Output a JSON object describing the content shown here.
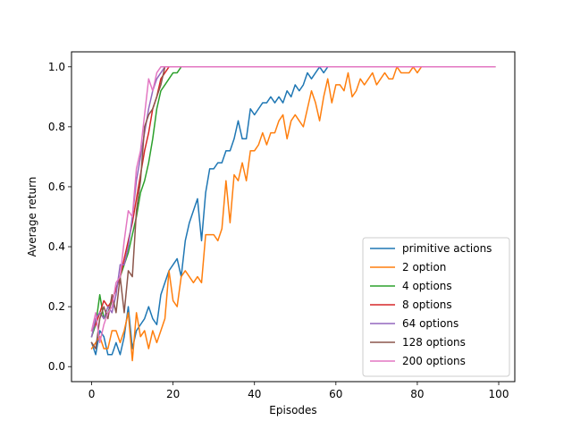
{
  "chart_data": {
    "type": "line",
    "xlabel": "Episodes",
    "ylabel": "Average return",
    "xlim": [
      -4.95,
      103.95
    ],
    "ylim": [
      -0.05,
      1.05
    ],
    "xticks": [
      0,
      20,
      40,
      60,
      80,
      100
    ],
    "yticks": [
      0.0,
      0.2,
      0.4,
      0.6,
      0.8,
      1.0
    ],
    "xtick_labels": [
      "0",
      "20",
      "40",
      "60",
      "80",
      "100"
    ],
    "ytick_labels": [
      "0.0",
      "0.2",
      "0.4",
      "0.6",
      "0.8",
      "1.0"
    ],
    "grid": false,
    "legend_position": "lower right",
    "series": [
      {
        "name": "primitive actions",
        "color": "#1f77b4",
        "y": [
          0.08,
          0.04,
          0.12,
          0.1,
          0.04,
          0.04,
          0.08,
          0.04,
          0.1,
          0.2,
          0.06,
          0.12,
          0.14,
          0.16,
          0.2,
          0.16,
          0.14,
          0.24,
          0.28,
          0.32,
          0.34,
          0.36,
          0.3,
          0.42,
          0.48,
          0.52,
          0.56,
          0.42,
          0.58,
          0.66,
          0.66,
          0.68,
          0.68,
          0.72,
          0.72,
          0.76,
          0.82,
          0.76,
          0.76,
          0.86,
          0.84,
          0.86,
          0.88,
          0.88,
          0.9,
          0.88,
          0.9,
          0.88,
          0.92,
          0.9,
          0.94,
          0.92,
          0.94,
          0.98,
          0.96,
          0.98,
          1.0,
          0.98,
          1.0,
          1.0,
          1.0,
          1.0,
          1.0,
          1.0,
          1.0,
          1.0,
          1.0,
          1.0,
          1.0,
          1.0,
          1.0,
          1.0,
          1.0,
          1.0,
          1.0,
          1.0,
          1.0,
          1.0,
          1.0,
          1.0,
          1.0,
          1.0,
          1.0,
          1.0,
          1.0,
          1.0,
          1.0,
          1.0,
          1.0,
          1.0,
          1.0,
          1.0,
          1.0,
          1.0,
          1.0,
          1.0,
          1.0,
          1.0,
          1.0,
          1.0
        ]
      },
      {
        "name": "2 option",
        "color": "#ff7f0e",
        "y": [
          0.06,
          0.08,
          0.1,
          0.06,
          0.06,
          0.12,
          0.12,
          0.08,
          0.12,
          0.18,
          0.02,
          0.18,
          0.1,
          0.12,
          0.06,
          0.12,
          0.08,
          0.12,
          0.16,
          0.32,
          0.22,
          0.2,
          0.3,
          0.32,
          0.3,
          0.28,
          0.3,
          0.28,
          0.44,
          0.44,
          0.44,
          0.42,
          0.46,
          0.62,
          0.48,
          0.64,
          0.62,
          0.68,
          0.62,
          0.72,
          0.72,
          0.74,
          0.78,
          0.74,
          0.78,
          0.78,
          0.82,
          0.84,
          0.76,
          0.82,
          0.84,
          0.82,
          0.8,
          0.86,
          0.92,
          0.88,
          0.82,
          0.9,
          0.96,
          0.88,
          0.94,
          0.94,
          0.92,
          0.98,
          0.9,
          0.92,
          0.96,
          0.94,
          0.96,
          0.98,
          0.94,
          0.96,
          0.98,
          0.96,
          0.96,
          1.0,
          0.98,
          0.98,
          0.98,
          1.0,
          0.98,
          1.0,
          1.0,
          1.0,
          1.0,
          1.0,
          1.0,
          1.0,
          1.0,
          1.0,
          1.0,
          1.0,
          1.0,
          1.0,
          1.0,
          1.0,
          1.0,
          1.0,
          1.0,
          1.0
        ]
      },
      {
        "name": "4 options",
        "color": "#2ca02c",
        "y": [
          0.1,
          0.14,
          0.24,
          0.16,
          0.18,
          0.22,
          0.26,
          0.3,
          0.34,
          0.38,
          0.44,
          0.5,
          0.58,
          0.62,
          0.68,
          0.76,
          0.86,
          0.92,
          0.94,
          0.96,
          0.98,
          0.98,
          1.0,
          1.0,
          1.0,
          1.0,
          1.0,
          1.0,
          1.0,
          1.0,
          1.0,
          1.0,
          1.0,
          1.0,
          1.0,
          1.0,
          1.0,
          1.0,
          1.0,
          1.0,
          1.0,
          1.0,
          1.0,
          1.0,
          1.0,
          1.0,
          1.0,
          1.0,
          1.0,
          1.0,
          1.0,
          1.0,
          1.0,
          1.0,
          1.0,
          1.0,
          1.0,
          1.0,
          1.0,
          1.0,
          1.0,
          1.0,
          1.0,
          1.0,
          1.0,
          1.0,
          1.0,
          1.0,
          1.0,
          1.0,
          1.0,
          1.0,
          1.0,
          1.0,
          1.0,
          1.0,
          1.0,
          1.0,
          1.0,
          1.0,
          1.0,
          1.0,
          1.0,
          1.0,
          1.0,
          1.0,
          1.0,
          1.0,
          1.0,
          1.0,
          1.0,
          1.0,
          1.0,
          1.0,
          1.0,
          1.0,
          1.0,
          1.0,
          1.0,
          1.0
        ]
      },
      {
        "name": "8 options",
        "color": "#d62728",
        "y": [
          0.12,
          0.14,
          0.18,
          0.22,
          0.2,
          0.22,
          0.26,
          0.3,
          0.36,
          0.42,
          0.48,
          0.56,
          0.64,
          0.72,
          0.78,
          0.86,
          0.9,
          0.96,
          0.98,
          1.0,
          1.0,
          1.0,
          1.0,
          1.0,
          1.0,
          1.0,
          1.0,
          1.0,
          1.0,
          1.0,
          1.0,
          1.0,
          1.0,
          1.0,
          1.0,
          1.0,
          1.0,
          1.0,
          1.0,
          1.0,
          1.0,
          1.0,
          1.0,
          1.0,
          1.0,
          1.0,
          1.0,
          1.0,
          1.0,
          1.0,
          1.0,
          1.0,
          1.0,
          1.0,
          1.0,
          1.0,
          1.0,
          1.0,
          1.0,
          1.0,
          1.0,
          1.0,
          1.0,
          1.0,
          1.0,
          1.0,
          1.0,
          1.0,
          1.0,
          1.0,
          1.0,
          1.0,
          1.0,
          1.0,
          1.0,
          1.0,
          1.0,
          1.0,
          1.0,
          1.0,
          1.0,
          1.0,
          1.0,
          1.0,
          1.0,
          1.0,
          1.0,
          1.0,
          1.0,
          1.0,
          1.0,
          1.0,
          1.0,
          1.0,
          1.0,
          1.0,
          1.0,
          1.0,
          1.0,
          1.0
        ]
      },
      {
        "name": "64 options",
        "color": "#9467bd",
        "y": [
          0.1,
          0.16,
          0.18,
          0.16,
          0.2,
          0.18,
          0.24,
          0.34,
          0.34,
          0.4,
          0.5,
          0.62,
          0.7,
          0.78,
          0.86,
          0.92,
          0.96,
          0.98,
          1.0,
          1.0,
          1.0,
          1.0,
          1.0,
          1.0,
          1.0,
          1.0,
          1.0,
          1.0,
          1.0,
          1.0,
          1.0,
          1.0,
          1.0,
          1.0,
          1.0,
          1.0,
          1.0,
          1.0,
          1.0,
          1.0,
          1.0,
          1.0,
          1.0,
          1.0,
          1.0,
          1.0,
          1.0,
          1.0,
          1.0,
          1.0,
          1.0,
          1.0,
          1.0,
          1.0,
          1.0,
          1.0,
          1.0,
          1.0,
          1.0,
          1.0,
          1.0,
          1.0,
          1.0,
          1.0,
          1.0,
          1.0,
          1.0,
          1.0,
          1.0,
          1.0,
          1.0,
          1.0,
          1.0,
          1.0,
          1.0,
          1.0,
          1.0,
          1.0,
          1.0,
          1.0,
          1.0,
          1.0,
          1.0,
          1.0,
          1.0,
          1.0,
          1.0,
          1.0,
          1.0,
          1.0,
          1.0,
          1.0,
          1.0,
          1.0,
          1.0,
          1.0,
          1.0,
          1.0,
          1.0,
          1.0
        ]
      },
      {
        "name": "128 options",
        "color": "#8c564b",
        "y": [
          0.08,
          0.06,
          0.16,
          0.2,
          0.16,
          0.24,
          0.18,
          0.3,
          0.18,
          0.32,
          0.3,
          0.52,
          0.62,
          0.8,
          0.84,
          0.86,
          0.9,
          0.94,
          1.0,
          1.0,
          1.0,
          1.0,
          1.0,
          1.0,
          1.0,
          1.0,
          1.0,
          1.0,
          1.0,
          1.0,
          1.0,
          1.0,
          1.0,
          1.0,
          1.0,
          1.0,
          1.0,
          1.0,
          1.0,
          1.0,
          1.0,
          1.0,
          1.0,
          1.0,
          1.0,
          1.0,
          1.0,
          1.0,
          1.0,
          1.0,
          1.0,
          1.0,
          1.0,
          1.0,
          1.0,
          1.0,
          1.0,
          1.0,
          1.0,
          1.0,
          1.0,
          1.0,
          1.0,
          1.0,
          1.0,
          1.0,
          1.0,
          1.0,
          1.0,
          1.0,
          1.0,
          1.0,
          1.0,
          1.0,
          1.0,
          1.0,
          1.0,
          1.0,
          1.0,
          1.0,
          1.0,
          1.0,
          1.0,
          1.0,
          1.0,
          1.0,
          1.0,
          1.0,
          1.0,
          1.0,
          1.0,
          1.0,
          1.0,
          1.0,
          1.0,
          1.0,
          1.0,
          1.0,
          1.0,
          1.0
        ]
      },
      {
        "name": "200 options",
        "color": "#e377c2",
        "y": [
          0.12,
          0.18,
          0.08,
          0.14,
          0.18,
          0.2,
          0.28,
          0.3,
          0.42,
          0.52,
          0.5,
          0.66,
          0.72,
          0.84,
          0.96,
          0.92,
          0.98,
          1.0,
          1.0,
          1.0,
          1.0,
          1.0,
          1.0,
          1.0,
          1.0,
          1.0,
          1.0,
          1.0,
          1.0,
          1.0,
          1.0,
          1.0,
          1.0,
          1.0,
          1.0,
          1.0,
          1.0,
          1.0,
          1.0,
          1.0,
          1.0,
          1.0,
          1.0,
          1.0,
          1.0,
          1.0,
          1.0,
          1.0,
          1.0,
          1.0,
          1.0,
          1.0,
          1.0,
          1.0,
          1.0,
          1.0,
          1.0,
          1.0,
          1.0,
          1.0,
          1.0,
          1.0,
          1.0,
          1.0,
          1.0,
          1.0,
          1.0,
          1.0,
          1.0,
          1.0,
          1.0,
          1.0,
          1.0,
          1.0,
          1.0,
          1.0,
          1.0,
          1.0,
          1.0,
          1.0,
          1.0,
          1.0,
          1.0,
          1.0,
          1.0,
          1.0,
          1.0,
          1.0,
          1.0,
          1.0,
          1.0,
          1.0,
          1.0,
          1.0,
          1.0,
          1.0,
          1.0,
          1.0,
          1.0,
          1.0
        ]
      }
    ]
  }
}
